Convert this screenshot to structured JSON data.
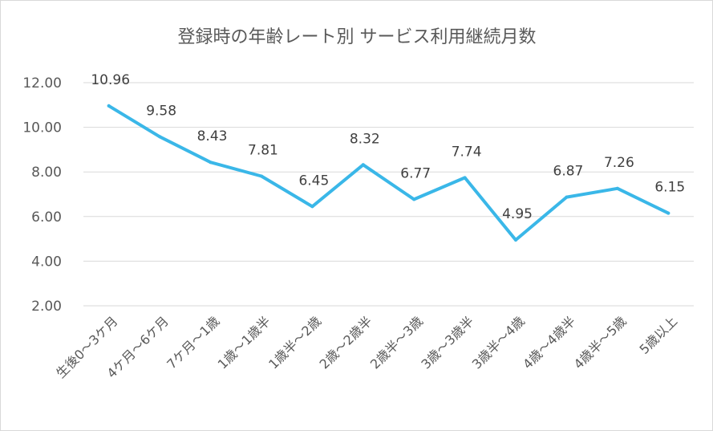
{
  "chart_data": {
    "type": "line",
    "title": "登録時の年齢レート別 サービス利用継続月数",
    "xlabel": "",
    "ylabel": "",
    "categories": [
      "生後0～3ケ月",
      "4ケ月～6ケ月",
      "7ケ月～1歳",
      "1歳～1歳半",
      "1歳半～2歳",
      "2歳～2歳半",
      "2歳半～3歳",
      "3歳～3歳半",
      "3歳半～4歳",
      "4歳～4歳半",
      "4歳半～5歳",
      "5歳以上"
    ],
    "series": [
      {
        "values": [
          10.96,
          9.58,
          8.43,
          7.81,
          6.45,
          8.32,
          6.77,
          7.74,
          4.95,
          6.87,
          7.26,
          6.15
        ],
        "color": "#3ab7e8"
      }
    ],
    "data_labels": [
      "10.96",
      "9.58",
      "8.43",
      "7.81",
      "6.45",
      "8.32",
      "6.77",
      "7.74",
      "4.95",
      "6.87",
      "7.26",
      "6.15"
    ],
    "yticks": [
      "2.00",
      "4.00",
      "6.00",
      "8.00",
      "10.00",
      "12.00"
    ],
    "ytick_values": [
      2,
      4,
      6,
      8,
      10,
      12
    ],
    "ylim": [
      2,
      12
    ],
    "grid": true,
    "gridline_color": "#d9d9d9",
    "legend": "none"
  }
}
